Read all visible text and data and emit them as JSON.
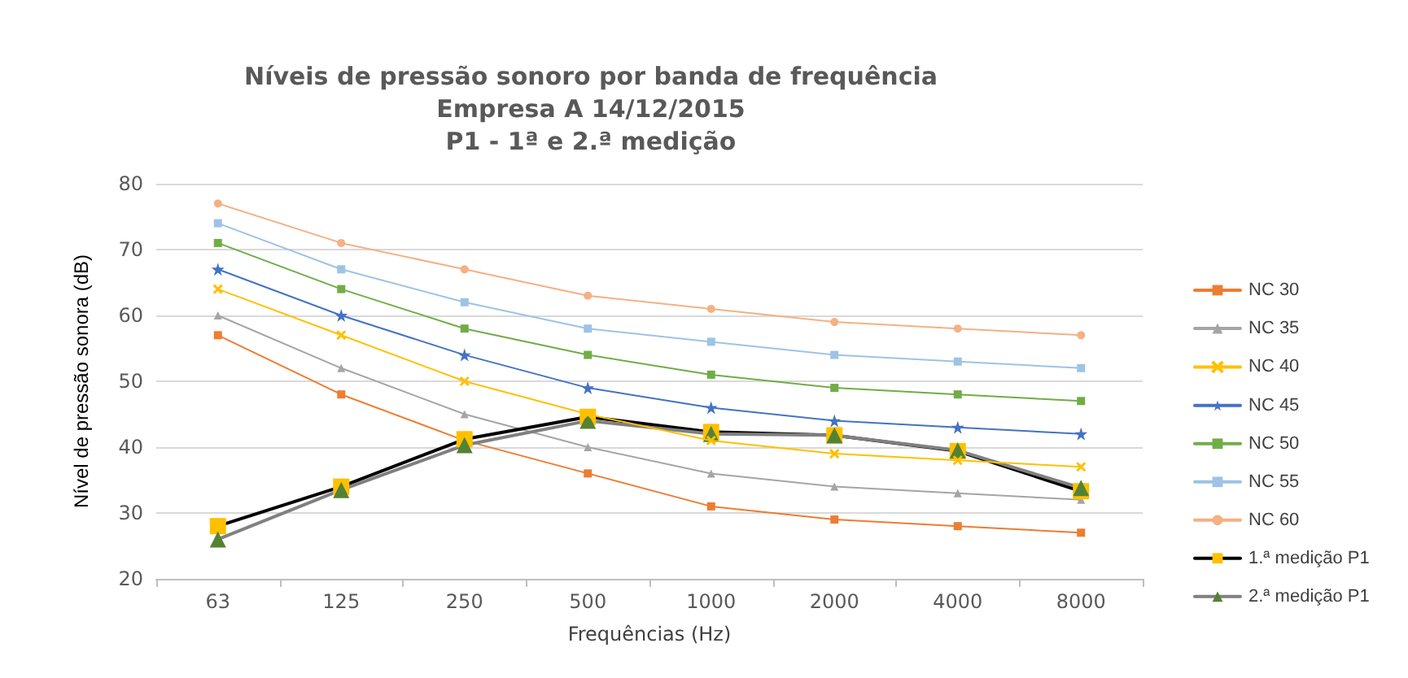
{
  "chart_data": {
    "type": "line",
    "title": "Níveis de pressão sonoro por banda de frequência\nEmpresa A 14/12/2015\nP1 - 1ª e 2.ª medição",
    "xlabel": "Frequências (Hz)",
    "ylabel": "Nível de pressão sonora (dB)",
    "categories": [
      "63",
      "125",
      "250",
      "500",
      "1000",
      "2000",
      "4000",
      "8000"
    ],
    "ylim": [
      20,
      80
    ],
    "yticks": [
      20,
      30,
      40,
      50,
      60,
      70,
      80
    ],
    "grid": "y",
    "legend": "right",
    "series": [
      {
        "name": "NC 30",
        "color": "#ed7d31",
        "marker": "square",
        "values": [
          57,
          48,
          41,
          36,
          31,
          29,
          28,
          27
        ]
      },
      {
        "name": "NC 35",
        "color": "#a5a5a5",
        "marker": "triangle",
        "values": [
          60,
          52,
          45,
          40,
          36,
          34,
          33,
          32
        ]
      },
      {
        "name": "NC 40",
        "color": "#ffc000",
        "marker": "cross",
        "values": [
          64,
          57,
          50,
          45,
          41,
          39,
          38,
          37
        ]
      },
      {
        "name": "NC 45",
        "color": "#4472c4",
        "marker": "star",
        "values": [
          67,
          60,
          54,
          49,
          46,
          44,
          43,
          42
        ]
      },
      {
        "name": "NC 50",
        "color": "#70ad47",
        "marker": "square",
        "values": [
          71,
          64,
          58,
          54,
          51,
          49,
          48,
          47
        ]
      },
      {
        "name": "NC 55",
        "color": "#9dc3e6",
        "marker": "square",
        "values": [
          74,
          67,
          62,
          58,
          56,
          54,
          53,
          52
        ]
      },
      {
        "name": "NC 60",
        "color": "#f4b183",
        "marker": "circle",
        "values": [
          77,
          71,
          67,
          63,
          61,
          59,
          58,
          57
        ]
      },
      {
        "name": "1.ª medição P1",
        "color": "#000000",
        "marker": "square",
        "values": [
          28,
          34,
          41.2,
          44.6,
          42.3,
          41.8,
          39.4,
          33.3
        ]
      },
      {
        "name": "2.ª medição P1",
        "color": "#808080",
        "marker": "triangle",
        "values": [
          26,
          33.5,
          40.3,
          44,
          42,
          41.8,
          39.5,
          33.8
        ]
      }
    ]
  }
}
